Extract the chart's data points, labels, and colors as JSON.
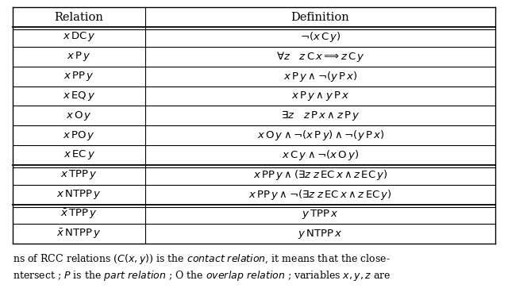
{
  "col_headers": [
    "Relation",
    "Definition"
  ],
  "relation_math": [
    "$x$ DC $y$",
    "$x$ P $y$",
    "$x$ PP $y$",
    "$x$ EQ $y$",
    "$x$ O $y$",
    "$x$ PO $y$",
    "$x$ EC $y$",
    "$x$ TPP $y$",
    "$x$ NTPP $y$",
    "$\\bar{x}$ TPP $y$",
    "$\\bar{x}$ NTPP $y$"
  ],
  "definition_math": [
    "$\\neg(x$ C $y)$",
    "$\\forall z\\quad z$ C $x \\Longrightarrow z$ C $y$",
    "$x$ P $y \\wedge \\neg(y$ P $x)$",
    "$x$ P $y \\wedge y$ P $x$",
    "$\\exists z\\quad z$ P $x \\wedge z$ P $y$",
    "$x$ O $y \\wedge \\neg(x$ P $y) \\wedge \\neg(y$ P $x)$",
    "$x$ C $y \\wedge \\neg(x$ O $y)$",
    "$x$ PP $y \\wedge (\\exists z\\, z$ EC $x \\wedge z$ EC $y)$",
    "$x$ PP $y \\wedge \\neg(\\exists z\\, z$ EC $x \\wedge z$ EC $y)$",
    "$y$ TPP $x$",
    "$y$ NTPP $x$"
  ],
  "col_split": 0.275,
  "bg_color": "#ffffff",
  "font_size": 9.5,
  "header_font_size": 10.5,
  "footer_font_size": 9.0,
  "fig_width": 6.4,
  "fig_height": 3.68
}
